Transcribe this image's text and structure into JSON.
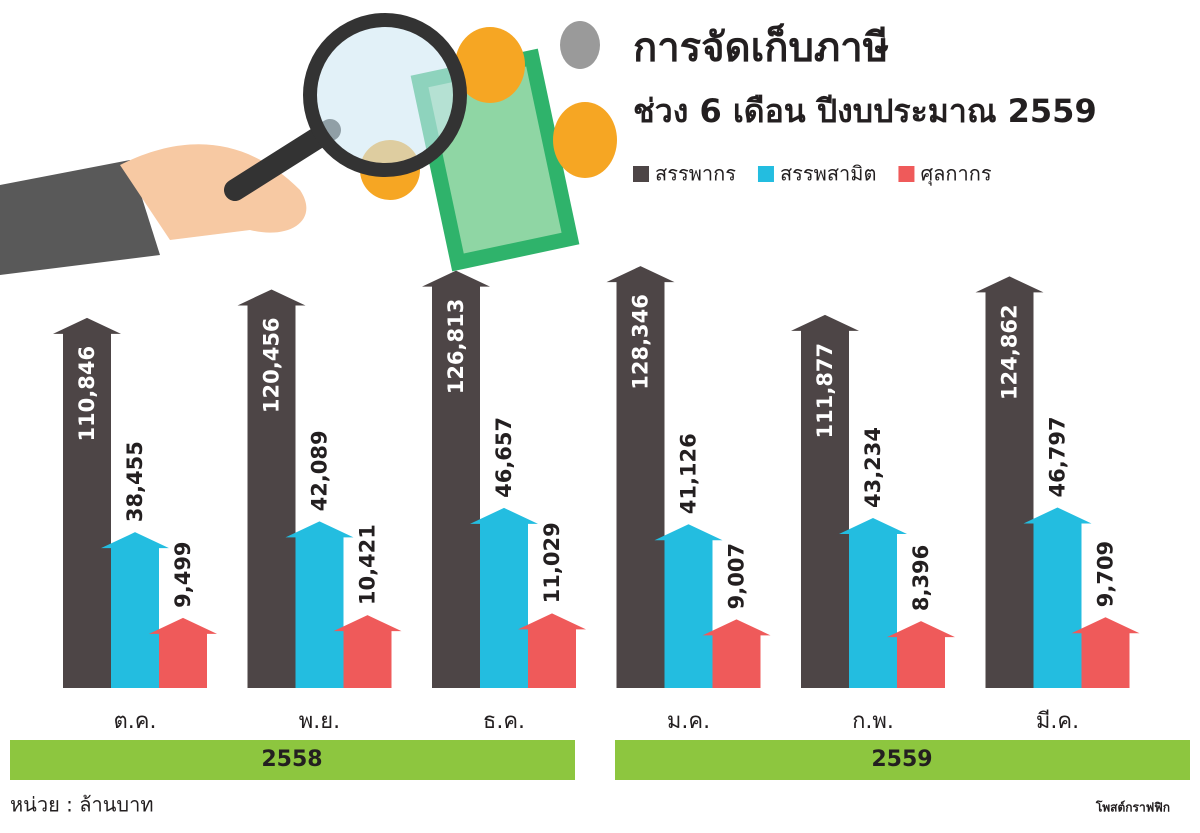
{
  "chart_data": {
    "type": "arrow-bar",
    "title": "การจัดเก็บภาษี",
    "subtitle": "ช่วง 6 เดือน ปีงบประมาณ 2559",
    "categories": [
      "ต.ค.",
      "พ.ย.",
      "ธ.ค.",
      "ม.ค.",
      "ก.พ.",
      "มี.ค."
    ],
    "year_groups": [
      "2558",
      "2559"
    ],
    "series": [
      {
        "name": "สรรพากร",
        "color": "#4d4546",
        "values": [
          110846,
          120456,
          126813,
          128346,
          111877,
          124862
        ],
        "value_labels": [
          "110,846",
          "120,456",
          "126,813",
          "128,346",
          "111,877",
          "124,862"
        ]
      },
      {
        "name": "สรรพสามิต",
        "color": "#23bde0",
        "values": [
          38455,
          42089,
          46657,
          41126,
          43234,
          46797
        ],
        "value_labels": [
          "38,455",
          "42,089",
          "46,657",
          "41,126",
          "43,234",
          "46,797"
        ]
      },
      {
        "name": "ศุลกากร",
        "color": "#ef5a5a",
        "values": [
          9499,
          10421,
          11029,
          9007,
          8396,
          9709
        ],
        "value_labels": [
          "9,499",
          "10,421",
          "11,029",
          "9,007",
          "8,396",
          "9,709"
        ]
      }
    ],
    "unit_note": "หน่วย : ล้านบาท",
    "source": "โพสต์กราฟฟิก"
  }
}
